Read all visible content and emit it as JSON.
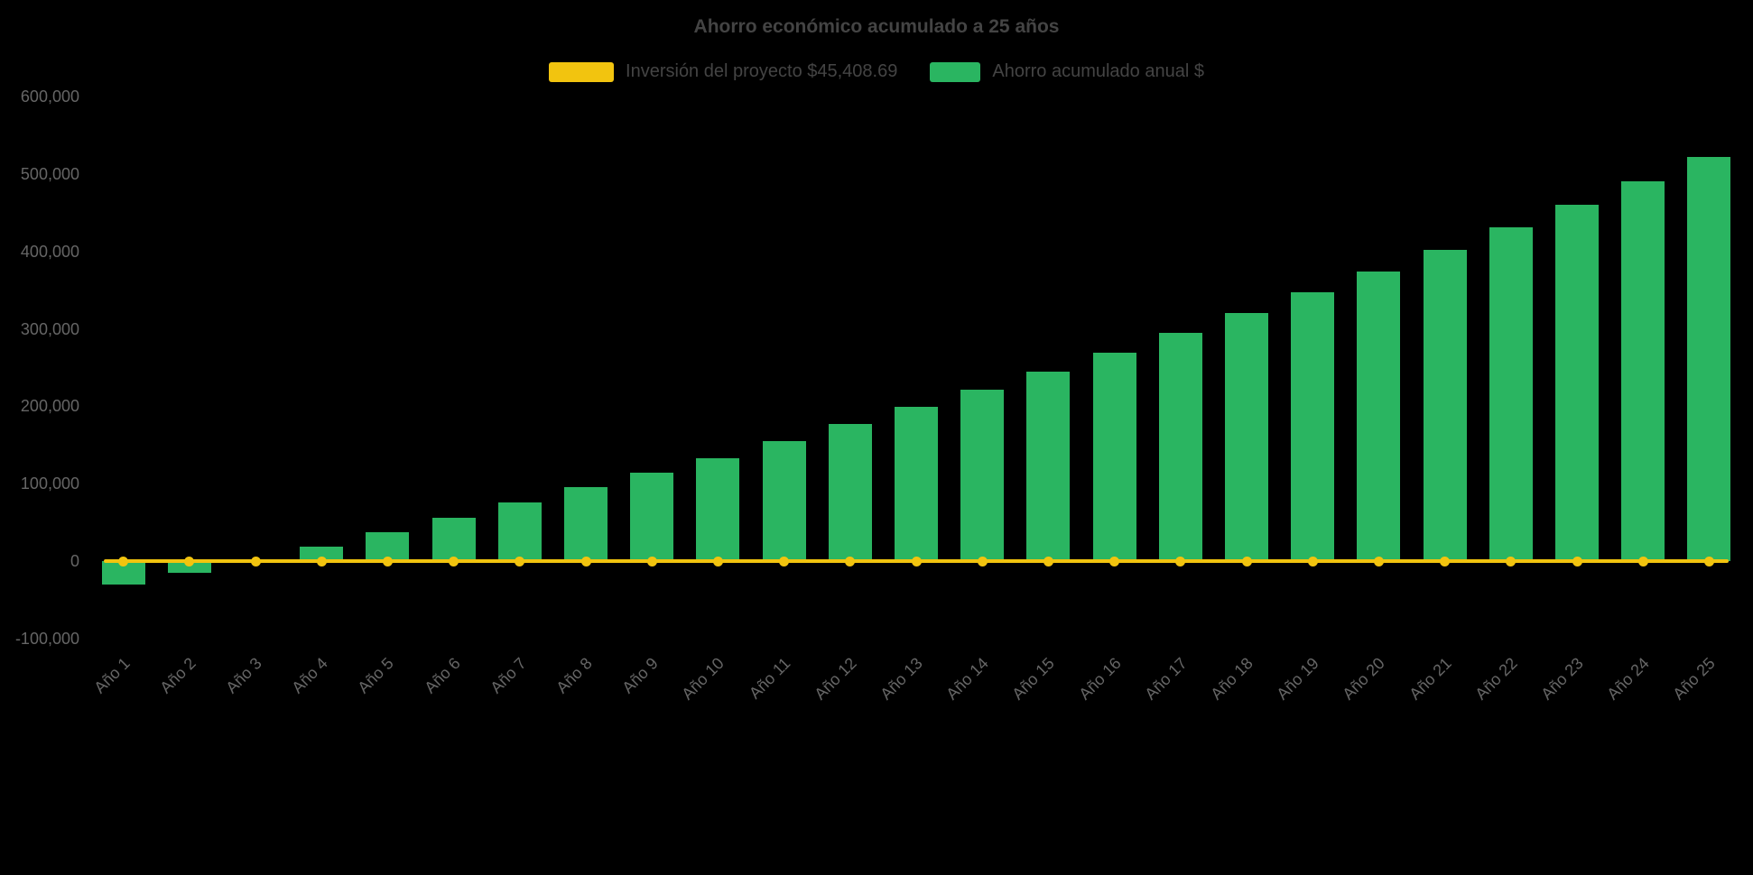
{
  "chart_data": {
    "type": "bar",
    "title": "Ahorro económico acumulado a 25 años",
    "categories": [
      "Año 1",
      "Año 2",
      "Año 3",
      "Año 4",
      "Año 5",
      "Año 6",
      "Año 7",
      "Año 8",
      "Año 9",
      "Año 10",
      "Año 11",
      "Año 12",
      "Año 13",
      "Año 14",
      "Año 15",
      "Año 16",
      "Año 17",
      "Año 18",
      "Año 19",
      "Año 20",
      "Año 21",
      "Año 22",
      "Año 23",
      "Año 24",
      "Año 25"
    ],
    "series": [
      {
        "name": "Inversión del proyecto $45,408.69",
        "type": "line",
        "color": "#F2C40F",
        "values": [
          0,
          0,
          0,
          0,
          0,
          0,
          0,
          0,
          0,
          0,
          0,
          0,
          0,
          0,
          0,
          0,
          0,
          0,
          0,
          0,
          0,
          0,
          0,
          0,
          0
        ]
      },
      {
        "name": "Ahorro acumulado anual $",
        "type": "bar",
        "color": "#2AB561",
        "values": [
          -30000,
          -14500,
          1800,
          19000,
          37000,
          56000,
          75500,
          95500,
          114000,
          133500,
          155000,
          177000,
          199500,
          221500,
          245000,
          269500,
          294500,
          320500,
          347000,
          374500,
          402500,
          431000,
          460500,
          490500,
          521500
        ]
      }
    ],
    "ylim": [
      -100000,
      600000
    ],
    "ytick_step": 100000,
    "ytick_labels": [
      "-100,000",
      "0",
      "100,000",
      "200,000",
      "300,000",
      "400,000",
      "500,000",
      "600,000"
    ],
    "xlabel": "",
    "ylabel": "",
    "grid": false,
    "legend_position": "top",
    "x_label_rotation": -45
  }
}
